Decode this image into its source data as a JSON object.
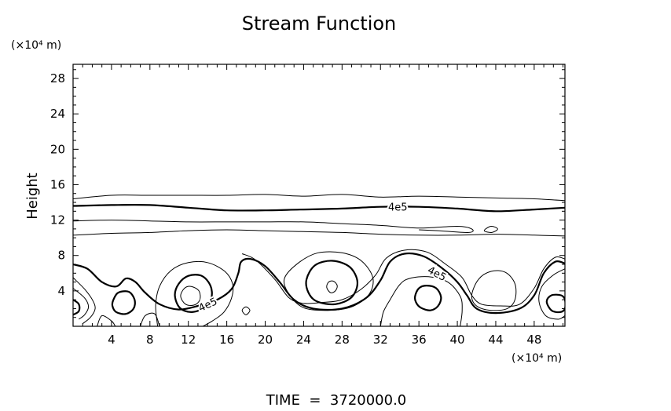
{
  "chart_data": {
    "type": "contour",
    "title": "Stream Function",
    "ylabel": "Height",
    "y_unit_label": "(×10⁴ m)",
    "x_unit_label": "(×10⁴ m)",
    "footer": "TIME  =  3720000.0",
    "x_ticks": [
      "4",
      "8",
      "12",
      "16",
      "20",
      "24",
      "28",
      "32",
      "36",
      "40",
      "44",
      "48"
    ],
    "y_ticks": [
      "4",
      "8",
      "12",
      "16",
      "20",
      "24",
      "28"
    ],
    "xlim": [
      0,
      51.2
    ],
    "ylim": [
      0,
      29.6
    ],
    "contour_labels": [
      {
        "text": "4e5",
        "x": 37.9,
        "y": 6.0
      },
      {
        "text": "4e5",
        "x": 14.0,
        "y": 2.5
      },
      {
        "text": "4e5",
        "x": 33.8,
        "y": 13.5
      }
    ],
    "contours": [
      {
        "weight": "thin",
        "closed": false,
        "points": [
          [
            0,
            14.4
          ],
          [
            4,
            14.8
          ],
          [
            8,
            14.8
          ],
          [
            12,
            14.8
          ],
          [
            16,
            14.8
          ],
          [
            20,
            14.9
          ],
          [
            24,
            14.7
          ],
          [
            28,
            14.9
          ],
          [
            32,
            14.6
          ],
          [
            36,
            14.7
          ],
          [
            40,
            14.6
          ],
          [
            44,
            14.5
          ],
          [
            48,
            14.4
          ],
          [
            51.2,
            14.2
          ]
        ]
      },
      {
        "weight": "thick",
        "closed": false,
        "points": [
          [
            0,
            13.6
          ],
          [
            4,
            13.7
          ],
          [
            8,
            13.7
          ],
          [
            12,
            13.4
          ],
          [
            16,
            13.1
          ],
          [
            20,
            13.1
          ],
          [
            24,
            13.2
          ],
          [
            28,
            13.3
          ],
          [
            32,
            13.5
          ],
          [
            36,
            13.5
          ],
          [
            40,
            13.3
          ],
          [
            44,
            13.0
          ],
          [
            48,
            13.2
          ],
          [
            51.2,
            13.4
          ]
        ]
      },
      {
        "weight": "thin",
        "closed": false,
        "points": [
          [
            0,
            11.9
          ],
          [
            4,
            12.0
          ],
          [
            8,
            11.9
          ],
          [
            12,
            11.8
          ],
          [
            16,
            11.8
          ],
          [
            20,
            11.8
          ],
          [
            24,
            11.8
          ],
          [
            28,
            11.6
          ],
          [
            32,
            11.4
          ],
          [
            36,
            11.1
          ],
          [
            40,
            11.3
          ],
          [
            41.5,
            11.0
          ],
          [
            41.2,
            10.6
          ],
          [
            38,
            10.8
          ],
          [
            36,
            10.9
          ]
        ]
      },
      {
        "weight": "thin",
        "closed": false,
        "points": [
          [
            0,
            10.3
          ],
          [
            4,
            10.5
          ],
          [
            8,
            10.6
          ],
          [
            12,
            10.8
          ],
          [
            16,
            10.9
          ],
          [
            20,
            10.8
          ],
          [
            24,
            10.7
          ],
          [
            28,
            10.6
          ],
          [
            32,
            10.4
          ],
          [
            36,
            10.3
          ],
          [
            40,
            10.3
          ],
          [
            44,
            10.4
          ],
          [
            48,
            10.3
          ],
          [
            51.2,
            10.2
          ]
        ]
      },
      {
        "weight": "thin",
        "closed": true,
        "points": [
          [
            42.8,
            10.8
          ],
          [
            43.5,
            11.3
          ],
          [
            44.2,
            11.0
          ],
          [
            43.6,
            10.6
          ]
        ]
      },
      {
        "weight": "thick",
        "closed": false,
        "points": [
          [
            0,
            7.0
          ],
          [
            1.5,
            6.5
          ],
          [
            3,
            5.0
          ],
          [
            4.5,
            4.5
          ],
          [
            5.5,
            5.4
          ],
          [
            6.5,
            5.0
          ],
          [
            7.5,
            3.8
          ],
          [
            9,
            2.5
          ],
          [
            11,
            1.9
          ],
          [
            13,
            2.3
          ],
          [
            15,
            3.0
          ],
          [
            16.5,
            4.2
          ],
          [
            17.2,
            6.0
          ],
          [
            17.5,
            7.3
          ],
          [
            18.5,
            7.6
          ],
          [
            20,
            6.8
          ],
          [
            21.5,
            5.0
          ],
          [
            23,
            3.0
          ],
          [
            25,
            2.0
          ],
          [
            28,
            2.0
          ],
          [
            30.5,
            3.2
          ],
          [
            32,
            5.2
          ],
          [
            33,
            7.3
          ],
          [
            34.5,
            8.2
          ],
          [
            36.5,
            7.9
          ],
          [
            38.5,
            6.5
          ],
          [
            40,
            5.0
          ],
          [
            41,
            3.5
          ],
          [
            42,
            2.0
          ],
          [
            44,
            1.5
          ],
          [
            46.5,
            2.0
          ],
          [
            48,
            3.5
          ],
          [
            49,
            6.0
          ],
          [
            50.2,
            7.3
          ],
          [
            51.2,
            7.1
          ]
        ]
      },
      {
        "weight": "thin",
        "closed": false,
        "points": [
          [
            0,
            5.5
          ],
          [
            1.2,
            4.2
          ],
          [
            2.0,
            3.0
          ],
          [
            2.3,
            2.0
          ],
          [
            1.8,
            1.0
          ],
          [
            1.0,
            0.3
          ]
        ]
      },
      {
        "weight": "thin",
        "closed": false,
        "points": [
          [
            0,
            4.3
          ],
          [
            1.2,
            3.2
          ],
          [
            1.6,
            2.2
          ],
          [
            1.2,
            1.3
          ],
          [
            0.6,
            0.8
          ]
        ]
      },
      {
        "weight": "thick",
        "closed": false,
        "points": [
          [
            0,
            3.0
          ],
          [
            0.6,
            2.5
          ],
          [
            0.6,
            1.7
          ],
          [
            0,
            1.3
          ]
        ]
      },
      {
        "weight": "thin",
        "closed": false,
        "points": [
          [
            2.5,
            0
          ],
          [
            3.0,
            1.2
          ],
          [
            4.0,
            0.6
          ],
          [
            4.4,
            0
          ]
        ]
      },
      {
        "weight": "thin",
        "closed": false,
        "points": [
          [
            7.0,
            0
          ],
          [
            7.5,
            1.2
          ],
          [
            8.5,
            1.4
          ],
          [
            9.0,
            0
          ]
        ]
      },
      {
        "weight": "thick",
        "closed": true,
        "points": [
          [
            4.2,
            3.0
          ],
          [
            4.7,
            3.8
          ],
          [
            5.8,
            3.9
          ],
          [
            6.4,
            3.0
          ],
          [
            6.3,
            2.0
          ],
          [
            5.5,
            1.4
          ],
          [
            4.5,
            1.6
          ],
          [
            4.1,
            2.3
          ]
        ]
      },
      {
        "weight": "thin",
        "closed": false,
        "points": [
          [
            8.8,
            0
          ],
          [
            8.6,
            2.4
          ],
          [
            9.0,
            4.5
          ],
          [
            10.2,
            6.3
          ],
          [
            12.0,
            7.2
          ],
          [
            14.0,
            7.2
          ],
          [
            15.8,
            6.2
          ],
          [
            16.6,
            4.8
          ],
          [
            16.5,
            3.2
          ],
          [
            15.7,
            1.6
          ],
          [
            14.5,
            0.6
          ],
          [
            13.5,
            0
          ]
        ]
      },
      {
        "weight": "thick",
        "closed": true,
        "points": [
          [
            10.6,
            3.5
          ],
          [
            11.0,
            4.8
          ],
          [
            12.0,
            5.7
          ],
          [
            13.4,
            5.7
          ],
          [
            14.3,
            4.6
          ],
          [
            14.4,
            3.2
          ],
          [
            13.7,
            2.1
          ],
          [
            12.3,
            1.6
          ],
          [
            11.1,
            2.1
          ]
        ]
      },
      {
        "weight": "thin",
        "closed": true,
        "points": [
          [
            11.2,
            3.4
          ],
          [
            11.6,
            4.3
          ],
          [
            12.3,
            4.5
          ],
          [
            13.1,
            4.0
          ],
          [
            13.2,
            3.0
          ],
          [
            12.6,
            2.4
          ],
          [
            11.7,
            2.5
          ]
        ]
      },
      {
        "weight": "thin",
        "closed": true,
        "points": [
          [
            17.6,
            1.8
          ],
          [
            18.0,
            2.2
          ],
          [
            18.4,
            1.8
          ],
          [
            18.0,
            1.3
          ]
        ]
      },
      {
        "weight": "thin",
        "closed": false,
        "points": [
          [
            17.6,
            8.2
          ],
          [
            19.0,
            7.5
          ],
          [
            21.0,
            5.3
          ],
          [
            22.5,
            3.2
          ],
          [
            24.0,
            2.6
          ],
          [
            26.0,
            2.7
          ],
          [
            28.0,
            3.0
          ],
          [
            30.0,
            4.2
          ],
          [
            31.5,
            5.8
          ],
          [
            32.6,
            7.7
          ],
          [
            34.5,
            8.6
          ],
          [
            36.8,
            8.4
          ],
          [
            38.8,
            7.0
          ],
          [
            40.5,
            5.5
          ],
          [
            41.5,
            3.5
          ],
          [
            42.5,
            2.5
          ],
          [
            44.5,
            2.3
          ],
          [
            46.5,
            2.5
          ],
          [
            48.0,
            4.3
          ],
          [
            49.0,
            6.5
          ],
          [
            50.2,
            7.8
          ],
          [
            51.2,
            7.6
          ]
        ]
      },
      {
        "weight": "thin",
        "closed": true,
        "points": [
          [
            22.0,
            5.4
          ],
          [
            23.5,
            7.2
          ],
          [
            25.5,
            8.3
          ],
          [
            28.0,
            8.3
          ],
          [
            30.0,
            7.4
          ],
          [
            31.2,
            5.5
          ],
          [
            30.8,
            3.6
          ],
          [
            29.0,
            2.2
          ],
          [
            26.5,
            1.8
          ],
          [
            24.0,
            2.1
          ],
          [
            22.5,
            3.6
          ]
        ]
      },
      {
        "weight": "thick",
        "closed": true,
        "points": [
          [
            24.3,
            5.3
          ],
          [
            25.2,
            6.9
          ],
          [
            27.0,
            7.4
          ],
          [
            28.8,
            6.7
          ],
          [
            29.6,
            5.0
          ],
          [
            29.0,
            3.3
          ],
          [
            27.3,
            2.5
          ],
          [
            25.4,
            2.8
          ],
          [
            24.5,
            3.8
          ]
        ]
      },
      {
        "weight": "thin",
        "closed": true,
        "points": [
          [
            26.4,
            4.4
          ],
          [
            26.6,
            5.0
          ],
          [
            27.1,
            5.1
          ],
          [
            27.5,
            4.6
          ],
          [
            27.3,
            4.0
          ],
          [
            26.8,
            3.8
          ]
        ]
      },
      {
        "weight": "thin",
        "closed": false,
        "points": [
          [
            32.0,
            0
          ],
          [
            32.3,
            1.6
          ],
          [
            33.0,
            3.0
          ],
          [
            34.0,
            4.7
          ],
          [
            35.0,
            5.4
          ],
          [
            37.0,
            5.6
          ],
          [
            39.0,
            5.0
          ],
          [
            40.3,
            3.4
          ],
          [
            40.5,
            1.8
          ],
          [
            40.3,
            0
          ]
        ]
      },
      {
        "weight": "thick",
        "closed": true,
        "points": [
          [
            35.6,
            3.4
          ],
          [
            36.0,
            4.3
          ],
          [
            36.8,
            4.6
          ],
          [
            37.8,
            4.3
          ],
          [
            38.3,
            3.3
          ],
          [
            38.0,
            2.3
          ],
          [
            37.2,
            1.8
          ],
          [
            36.2,
            2.1
          ],
          [
            35.7,
            2.7
          ]
        ]
      },
      {
        "weight": "thin",
        "closed": true,
        "points": [
          [
            41.5,
            3.5
          ],
          [
            42.2,
            5.3
          ],
          [
            43.5,
            6.2
          ],
          [
            45.0,
            6.1
          ],
          [
            46.0,
            4.8
          ],
          [
            46.0,
            3.0
          ],
          [
            45.2,
            2.0
          ],
          [
            43.5,
            1.8
          ],
          [
            42.0,
            2.3
          ]
        ]
      },
      {
        "weight": "thin",
        "closed": false,
        "points": [
          [
            51.2,
            6.5
          ],
          [
            50.0,
            5.8
          ],
          [
            48.8,
            4.5
          ],
          [
            48.5,
            2.8
          ],
          [
            49.2,
            1.2
          ],
          [
            50.5,
            0.8
          ],
          [
            51.2,
            1.2
          ]
        ]
      },
      {
        "weight": "thick",
        "closed": true,
        "points": [
          [
            49.3,
            2.8
          ],
          [
            49.8,
            3.5
          ],
          [
            50.8,
            3.5
          ],
          [
            51.2,
            3.0
          ],
          [
            51.2,
            2.0
          ],
          [
            50.7,
            1.6
          ],
          [
            49.8,
            1.8
          ]
        ]
      }
    ]
  }
}
